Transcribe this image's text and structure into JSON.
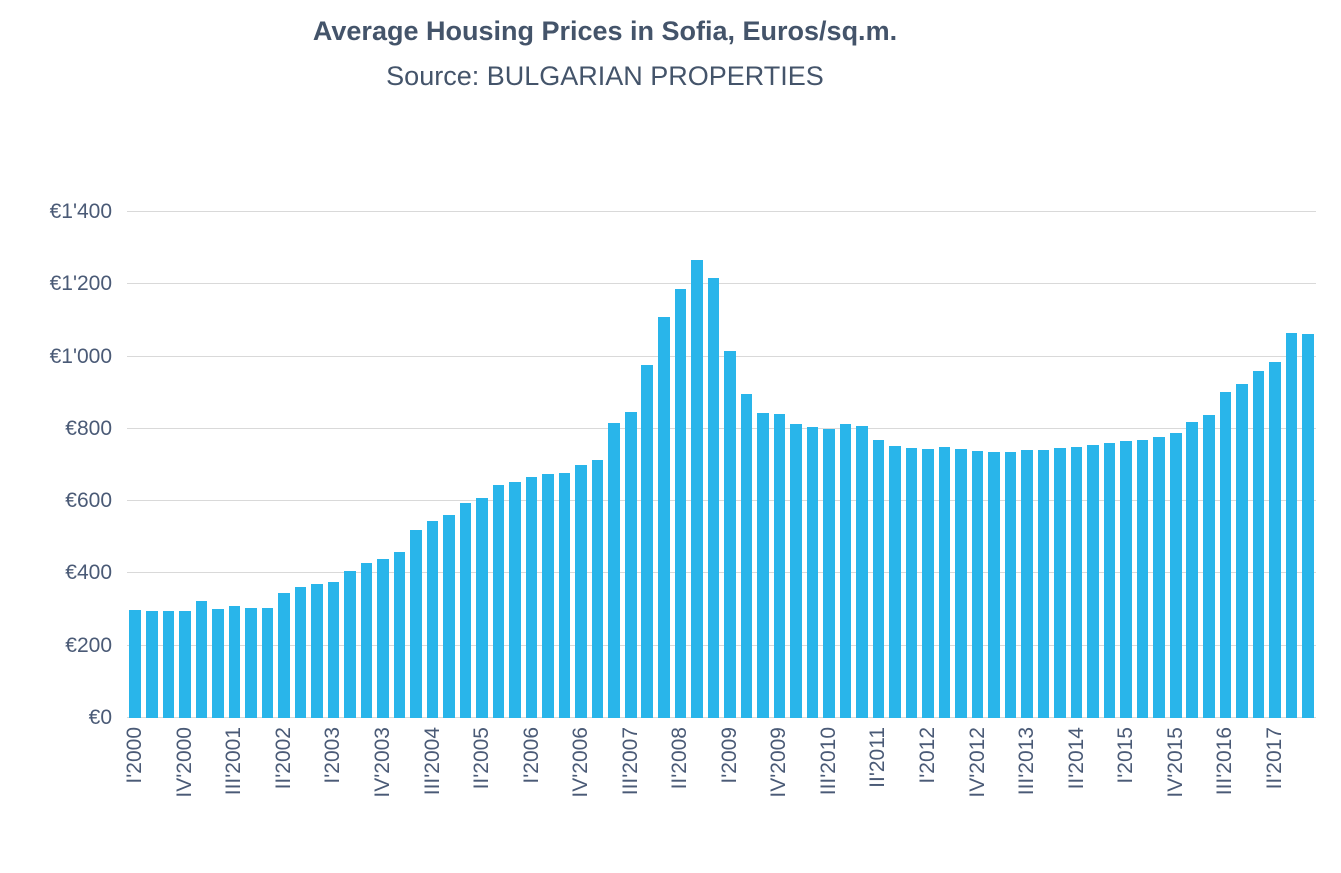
{
  "chart": {
    "title": "Average Housing Prices in Sofia, Euros/sq.m.",
    "subtitle": "Source: BULGARIAN PROPERTIES"
  },
  "chart_data": {
    "type": "bar",
    "title": "Average Housing Prices in Sofia, Euros/sq.m.",
    "subtitle": "Source: BULGARIAN PROPERTIES",
    "unit": "EUR per sq.m.",
    "categories": [
      "I'2000",
      "II'2000",
      "III'2000",
      "IV'2000",
      "I'2001",
      "II'2001",
      "III'2001",
      "IV'2001",
      "I'2002",
      "II'2002",
      "III'2002",
      "IV'2002",
      "I'2003",
      "II'2003",
      "III'2003",
      "IV'2003",
      "I'2004",
      "II'2004",
      "III'2004",
      "IV'2004",
      "I'2005",
      "II'2005",
      "III'2005",
      "IV'2005",
      "I'2006",
      "II'2006",
      "III'2006",
      "IV'2006",
      "I'2007",
      "II'2007",
      "III'2007",
      "IV'2007",
      "I'2008",
      "II'2008",
      "III'2008",
      "IV'2008",
      "I'2009",
      "II'2009",
      "III'2009",
      "IV'2009",
      "I'2010",
      "II'2010",
      "III'2010",
      "IV'2010",
      "I'2011",
      "II'2011",
      "III'2011",
      "IV'2011",
      "I'2012",
      "II'2012",
      "III'2012",
      "IV'2012",
      "I'2013",
      "II'2013",
      "III'2013",
      "IV'2013",
      "I'2014",
      "II'2014",
      "III'2014",
      "IV'2014",
      "I'2015",
      "II'2015",
      "III'2015",
      "IV'2015",
      "I'2016",
      "II'2016",
      "III'2016",
      "IV'2016",
      "I'2017",
      "II'2017",
      "III'2017",
      "IV'2017"
    ],
    "values": [
      300,
      297,
      296,
      297,
      324,
      302,
      309,
      304,
      304,
      345,
      363,
      372,
      376,
      408,
      430,
      439,
      460,
      521,
      546,
      562,
      596,
      610,
      645,
      653,
      668,
      676,
      679,
      701,
      715,
      817,
      847,
      978,
      1110,
      1188,
      1266,
      1217,
      1015,
      896,
      845,
      841,
      813,
      805,
      799,
      813,
      807,
      769,
      752,
      747,
      744,
      750,
      744,
      738,
      736,
      736,
      741,
      741,
      747,
      750,
      756,
      761,
      766,
      769,
      777,
      788,
      819,
      838,
      902,
      924,
      960,
      985,
      1065,
      1062
    ],
    "x_tick_every": 3,
    "x_tick_labels": [
      "I'2000",
      "IV'2000",
      "III'2001",
      "II'2002",
      "I'2003",
      "IV'2003",
      "III'2004",
      "II'2005",
      "I'2006",
      "IV'2006",
      "III'2007",
      "II'2008",
      "I'2009",
      "IV'2009",
      "III'2010",
      "II'2011",
      "I'2012",
      "IV'2012",
      "III'2013",
      "II'2014",
      "I'2015",
      "IV'2015",
      "III'2016",
      "II'2017"
    ],
    "ylim": [
      0,
      1400
    ],
    "y_tick_step": 200,
    "y_tick_labels": [
      "€0",
      "€200",
      "€400",
      "€600",
      "€800",
      "€1'000",
      "€1'200",
      "€1'400"
    ],
    "grid": true,
    "legend": false,
    "colors": {
      "bar": "#29B5EA",
      "grid": "#D9D9D9",
      "title": "#44546A",
      "axis_labels": "#4A5A76"
    }
  }
}
